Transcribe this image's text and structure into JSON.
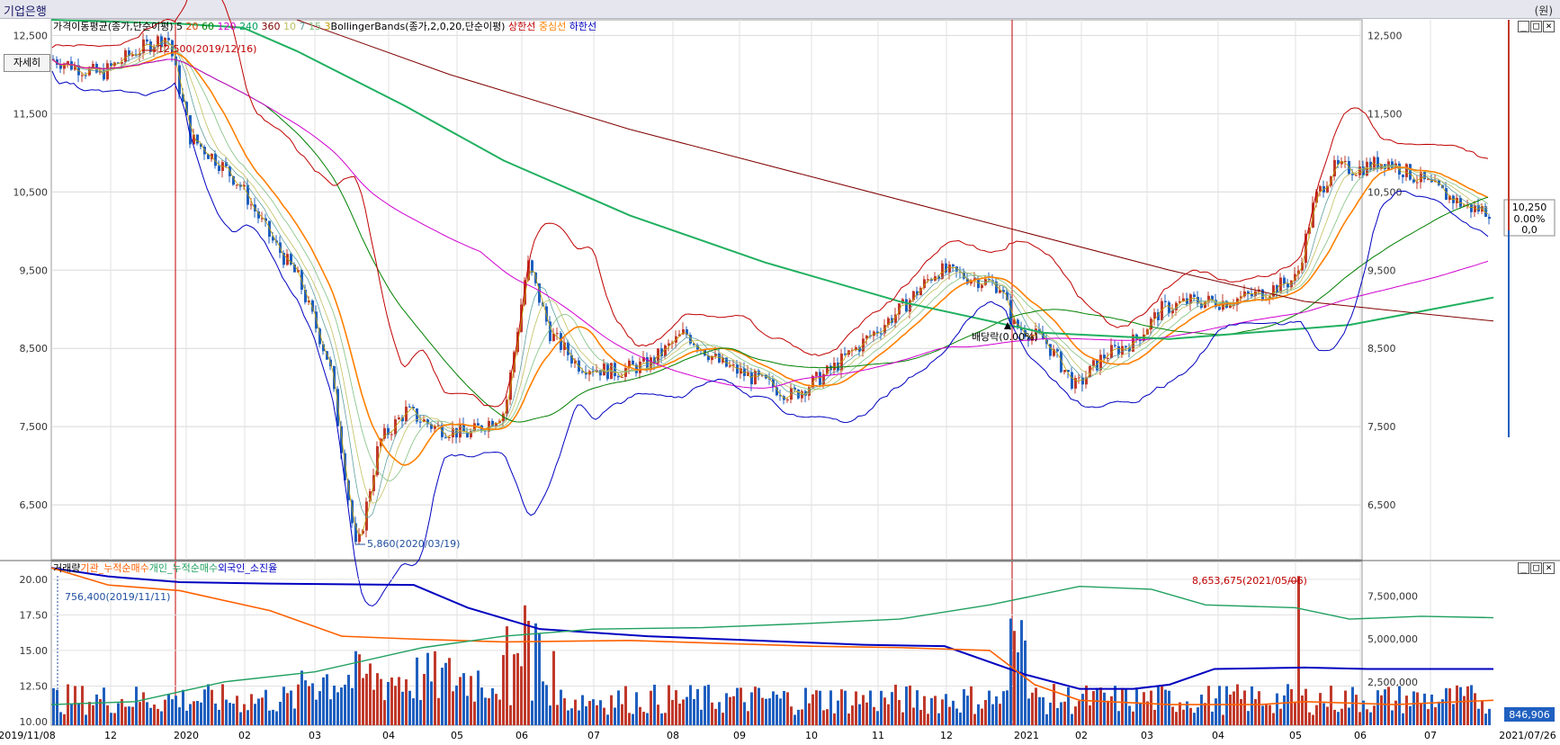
{
  "window": {
    "title": "기업은행",
    "unit": "(원)",
    "detail_button": "자세히"
  },
  "price_panel": {
    "legend": [
      {
        "text": "가격이동평균(종가,단순이평)",
        "color": "#000000"
      },
      {
        "text": "5",
        "color": "#000000"
      },
      {
        "text": "20",
        "color": "#d04000"
      },
      {
        "text": "60",
        "color": "#008000"
      },
      {
        "text": "120",
        "color": "#d000d0"
      },
      {
        "text": "240",
        "color": "#00a060"
      },
      {
        "text": "360",
        "color": "#800000"
      },
      {
        "text": "10",
        "color": "#c0c060"
      },
      {
        "text": "7",
        "color": "#60a0a0"
      },
      {
        "text": "15",
        "color": "#80c080"
      },
      {
        "text": "3",
        "color": "#c0a000"
      },
      {
        "text": "BollingerBands(종가,2,0,20,단순이평)",
        "color": "#000000"
      },
      {
        "text": "상한선",
        "color": "#c00000"
      },
      {
        "text": "중심선",
        "color": "#ff8000"
      },
      {
        "text": "하한선",
        "color": "#0000c0"
      }
    ],
    "y_ticks": [
      "12,500",
      "11,500",
      "10,500",
      "9,500",
      "8,500",
      "7,500",
      "6,500"
    ],
    "y_tick_values": [
      12500,
      11500,
      10500,
      9500,
      8500,
      7500,
      6500
    ],
    "annotations": {
      "high": "12,500(2019/12/16)",
      "low": "5,860(2020/03/19)",
      "dividend": "배당락(0.00%)"
    },
    "current": {
      "price": "10,250",
      "change_pct": "0.00%",
      "change": "0,0"
    }
  },
  "volume_panel": {
    "legend": [
      {
        "text": "거래량",
        "color": "#000000"
      },
      {
        "text": "기관_누적순매수",
        "color": "#ff6000"
      },
      {
        "text": "개인_누적순매수",
        "color": "#20a060"
      },
      {
        "text": "외국인_소진율",
        "color": "#0000c0"
      }
    ],
    "left_ticks": [
      "20.00",
      "17.50",
      "15.00",
      "12.50",
      "10.00"
    ],
    "right_ticks": [
      "7,500,000",
      "5,000,000",
      "2,500,000"
    ],
    "annotations": {
      "max_volume": "8,653,675(2021/05/06)",
      "first": "756,400(2019/11/11)"
    },
    "current_volume": "846,906"
  },
  "x_axis": {
    "labels": [
      "2019/11/08",
      "12",
      "2020",
      "02",
      "03",
      "04",
      "05",
      "06",
      "07",
      "08",
      "09",
      "10",
      "11",
      "12",
      "2021",
      "02",
      "03",
      "04",
      "05",
      "06",
      "07",
      "2021/07/26"
    ]
  },
  "chart_data": {
    "type": "line",
    "title": "기업은행",
    "series": [
      {
        "name": "종가",
        "x": [
          "2019-11-08",
          "2019-12-16",
          "2020-01",
          "2020-02",
          "2020-03-19",
          "2020-04",
          "2020-05",
          "2020-06",
          "2020-07",
          "2020-08",
          "2020-09",
          "2020-10",
          "2020-11",
          "2020-12",
          "2021-01",
          "2021-02",
          "2021-03",
          "2021-04",
          "2021-05",
          "2021-06",
          "2021-07-26"
        ],
        "values": [
          12200,
          12500,
          11200,
          10600,
          5860,
          7700,
          7500,
          9600,
          8100,
          8700,
          8200,
          8000,
          8700,
          9500,
          8800,
          8000,
          8800,
          9200,
          10400,
          10900,
          10250
        ]
      }
    ],
    "ylim": [
      5800,
      12700
    ],
    "volume": {
      "max": 8653675,
      "max_date": "2021/05/06",
      "first": 756400,
      "last": 846906
    },
    "foreign_ownership_pct": {
      "start": 20.8,
      "end": 13.0
    }
  }
}
